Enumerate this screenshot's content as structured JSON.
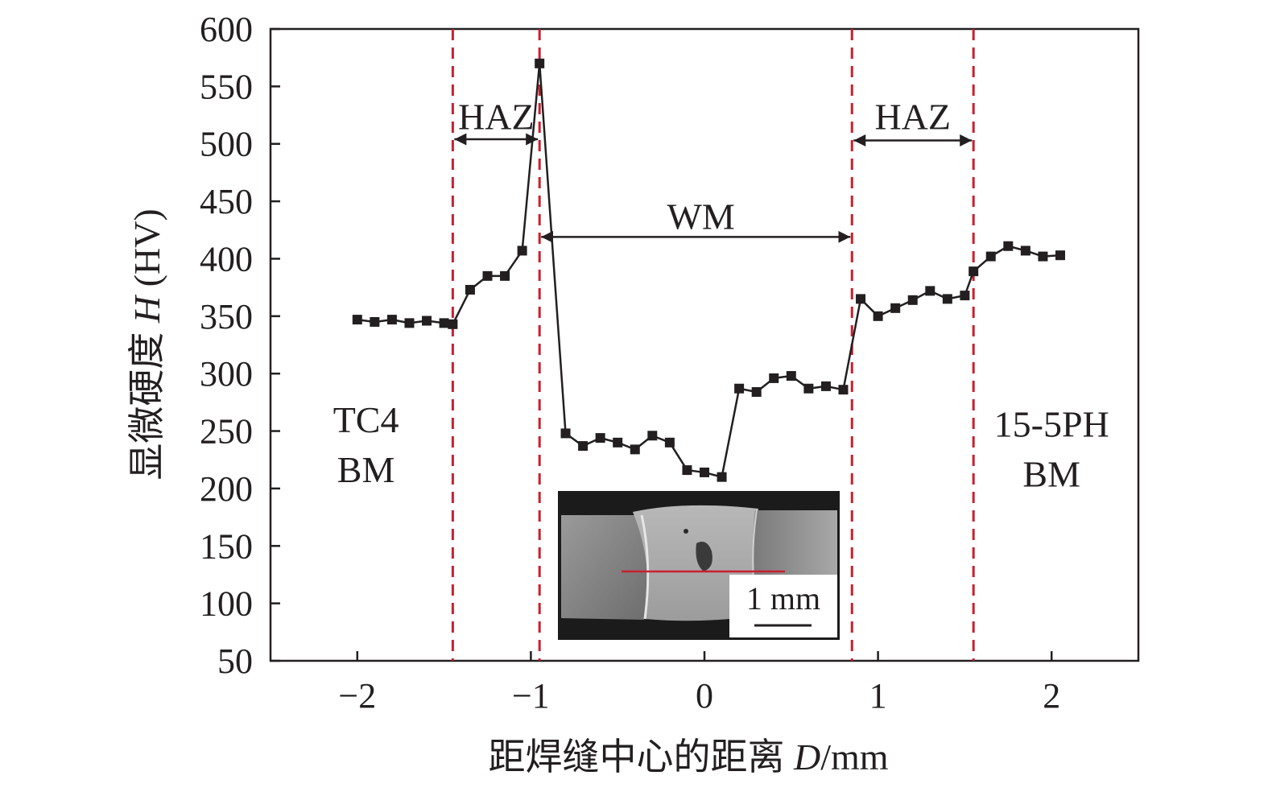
{
  "chart_data": {
    "type": "line",
    "xlabel_prefix": "距焊缝中心的距离 ",
    "xlabel_var": "D",
    "xlabel_unit": "/mm",
    "ylabel_prefix": "显微硬度 ",
    "ylabel_var": "H",
    "ylabel_unit": " (HV)",
    "xlim": [
      -2.5,
      2.5
    ],
    "ylim": [
      50,
      600
    ],
    "xticks": [
      -2,
      -1,
      0,
      1,
      2
    ],
    "xtick_labels": [
      "−2",
      "−1",
      "0",
      "1",
      "2"
    ],
    "yticks": [
      50,
      100,
      150,
      200,
      250,
      300,
      350,
      400,
      450,
      500,
      550,
      600
    ],
    "ytick_labels": [
      "50",
      "100",
      "150",
      "200",
      "250",
      "300",
      "350",
      "400",
      "450",
      "500",
      "550",
      "600"
    ],
    "grid": false,
    "series": [
      {
        "color": "#231f20",
        "marker": "square",
        "x": [
          -2.0,
          -1.9,
          -1.8,
          -1.7,
          -1.6,
          -1.5,
          -1.45,
          -1.35,
          -1.25,
          -1.15,
          -1.05,
          -0.95,
          -0.8,
          -0.7,
          -0.6,
          -0.5,
          -0.4,
          -0.3,
          -0.2,
          -0.1,
          0.0,
          0.1,
          0.2,
          0.3,
          0.4,
          0.5,
          0.6,
          0.7,
          0.8,
          0.9,
          1.0,
          1.1,
          1.2,
          1.3,
          1.4,
          1.5,
          1.55,
          1.65,
          1.75,
          1.85,
          1.95,
          2.05
        ],
        "y": [
          347,
          345,
          347,
          344,
          346,
          344,
          343,
          373,
          385,
          385,
          407,
          570,
          248,
          237,
          244,
          240,
          234,
          246,
          240,
          216,
          214,
          210,
          287,
          284,
          296,
          298,
          287,
          289,
          286,
          365,
          350,
          357,
          364,
          372,
          365,
          368,
          389,
          402,
          411,
          407,
          402,
          403
        ]
      }
    ],
    "boundaries_x": [
      -1.45,
      -0.95,
      0.85,
      1.55
    ],
    "boundary_color": "#c8202f",
    "annotations": [
      {
        "text": "HAZ",
        "x": -1.2,
        "y": 524,
        "arrow_x": [
          -1.45,
          -0.95
        ],
        "arrow_y": 504
      },
      {
        "text": "WM",
        "x": -0.02,
        "y": 437,
        "arrow_x": [
          -0.95,
          0.85
        ],
        "arrow_y": 419
      },
      {
        "text": "HAZ",
        "x": 1.2,
        "y": 524,
        "arrow_x": [
          0.85,
          1.55
        ],
        "arrow_y": 503
      }
    ],
    "region_labels": [
      {
        "lines": [
          "TC4",
          "BM"
        ],
        "x": -1.95,
        "y": 249
      },
      {
        "lines": [
          "15-5PH",
          "BM"
        ],
        "x": 2.0,
        "y": 245
      }
    ],
    "inset": {
      "scale_bar_label": "1 mm",
      "profile_line_color": "#c8202f"
    }
  }
}
